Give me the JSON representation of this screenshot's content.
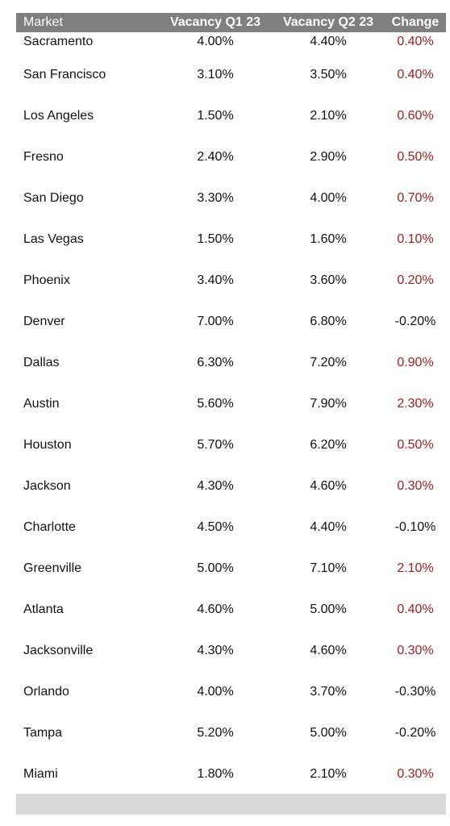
{
  "table": {
    "headers": [
      "Market",
      "Vacancy Q1 23",
      "Vacancy Q2 23",
      "Change"
    ],
    "rows": [
      [
        "Sacramento",
        "4.00%",
        "4.40%",
        "0.40%"
      ],
      [
        "San Francisco",
        "3.10%",
        "3.50%",
        "0.40%"
      ],
      [
        "Los Angeles",
        "1.50%",
        "2.10%",
        "0.60%"
      ],
      [
        "Fresno",
        "2.40%",
        "2.90%",
        "0.50%"
      ],
      [
        "San Diego",
        "3.30%",
        "4.00%",
        "0.70%"
      ],
      [
        "Las Vegas",
        "1.50%",
        "1.60%",
        "0.10%"
      ],
      [
        "Phoenix",
        "3.40%",
        "3.60%",
        "0.20%"
      ],
      [
        "Denver",
        "7.00%",
        "6.80%",
        "-0.20%"
      ],
      [
        "Dallas",
        "6.30%",
        "7.20%",
        "0.90%"
      ],
      [
        "Austin",
        "5.60%",
        "7.90%",
        "2.30%"
      ],
      [
        "Houston",
        "5.70%",
        "6.20%",
        "0.50%"
      ],
      [
        "Jackson",
        "4.30%",
        "4.60%",
        "0.30%"
      ],
      [
        "Charlotte",
        "4.50%",
        "4.40%",
        "-0.10%"
      ],
      [
        "Greenville",
        "5.00%",
        "7.10%",
        "2.10%"
      ],
      [
        "Atlanta",
        "4.60%",
        "5.00%",
        "0.40%"
      ],
      [
        "Jacksonville",
        "4.30%",
        "4.60%",
        "0.30%"
      ],
      [
        "Orlando",
        "4.00%",
        "3.70%",
        "-0.30%"
      ],
      [
        "Tampa",
        "5.20%",
        "5.00%",
        "-0.20%"
      ],
      [
        "Miami",
        "1.80%",
        "2.10%",
        "0.30%"
      ]
    ]
  },
  "colors": {
    "header_bg": "#7f7f7f",
    "positive_change": "#9b1c1c",
    "negative_change": "#111111",
    "footer_bg": "#d9d9d9"
  }
}
